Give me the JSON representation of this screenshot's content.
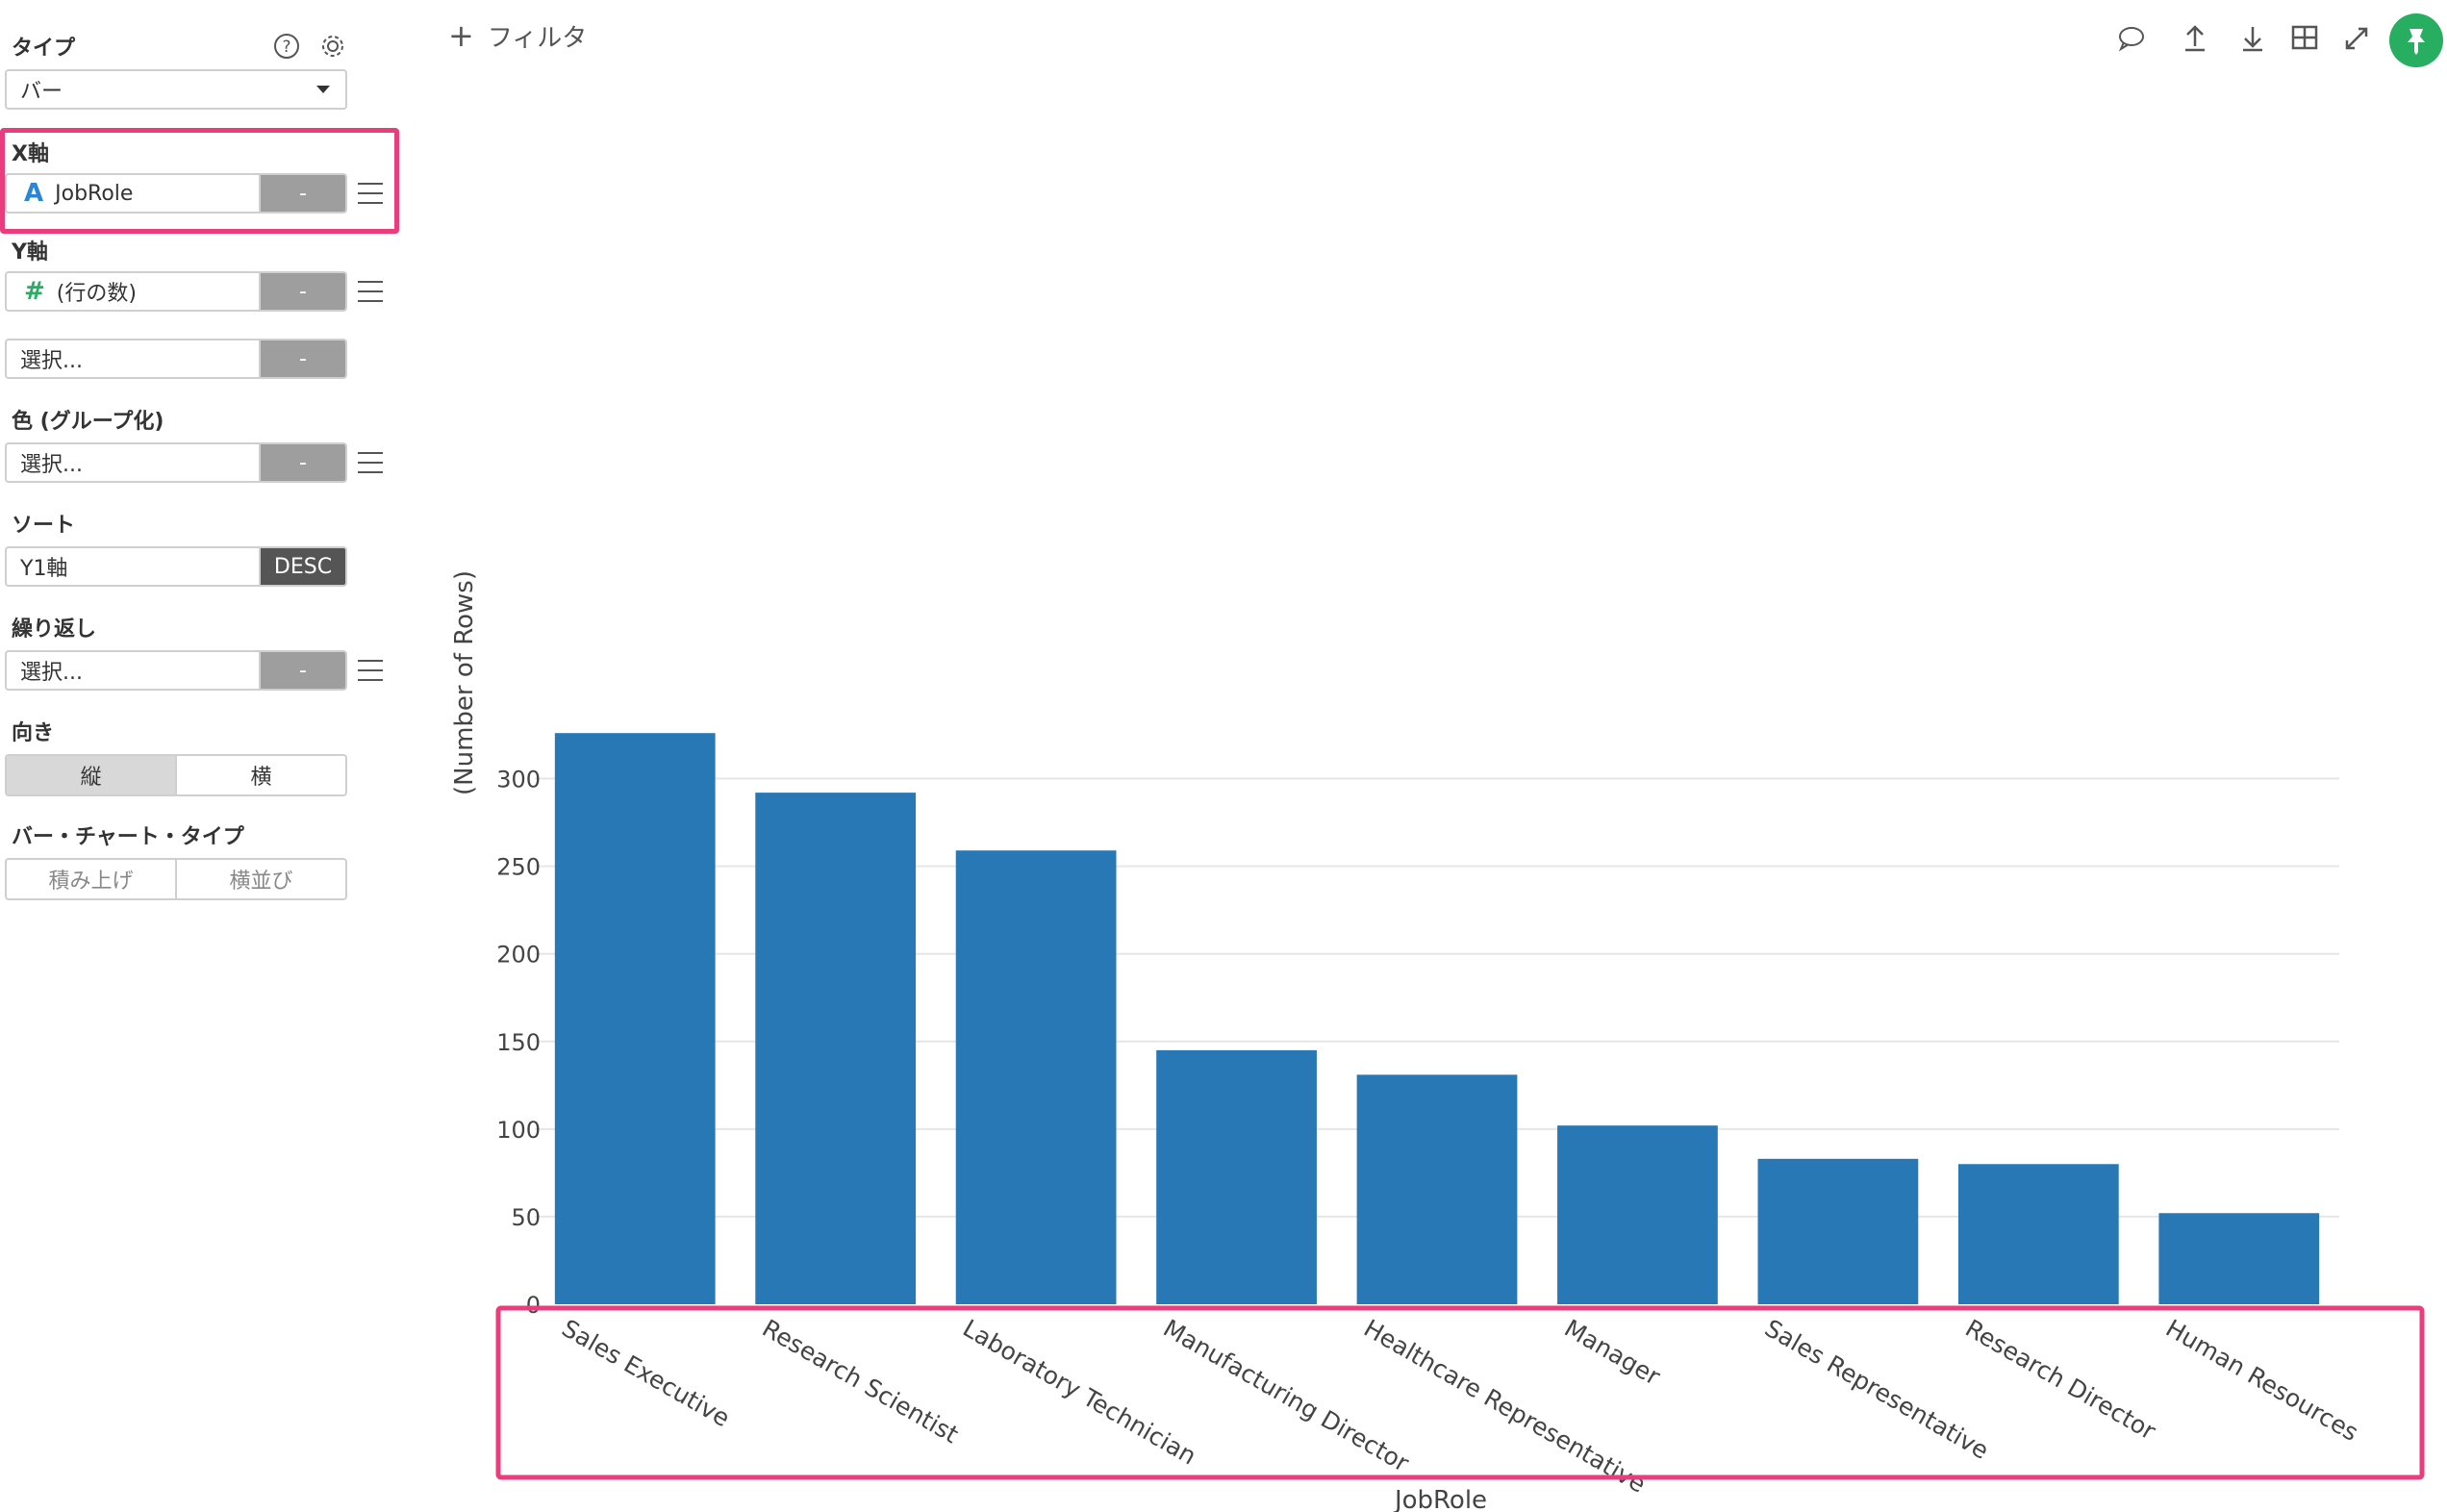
{
  "panel": {
    "type_label": "タイプ",
    "type_value": "バー",
    "x_axis_label": "X軸",
    "x_axis_field": "JobRole",
    "x_axis_btn": "-",
    "y_axis_label": "Y軸",
    "y_axis_field": "(行の数)",
    "y_axis_btn": "-",
    "y2_placeholder": "選択...",
    "y2_btn": "-",
    "color_label": "色 (グループ化)",
    "color_placeholder": "選択...",
    "color_btn": "-",
    "sort_label": "ソート",
    "sort_value": "Y1軸",
    "sort_order": "DESC",
    "repeat_label": "繰り返し",
    "repeat_placeholder": "選択...",
    "repeat_btn": "-",
    "orientation_label": "向き",
    "orientation_options": [
      "縦",
      "横"
    ],
    "bar_type_label": "バー・チャート・タイプ",
    "bar_type_options": [
      "積み上げ",
      "横並び"
    ]
  },
  "toolbar": {
    "filter_label": "フィルタ",
    "icons": [
      "comment-icon",
      "upload-icon",
      "download-icon",
      "table-icon",
      "expand-icon",
      "pin-icon"
    ]
  },
  "colors": {
    "bar": "#2878b5",
    "highlight": "#ea3d7d",
    "pin": "#27ae60"
  },
  "chart_data": {
    "type": "bar",
    "categories": [
      "Sales Executive",
      "Research Scientist",
      "Laboratory Technician",
      "Manufacturing Director",
      "Healthcare Representative",
      "Manager",
      "Sales Representative",
      "Research Director",
      "Human Resources"
    ],
    "values": [
      326,
      292,
      259,
      145,
      131,
      102,
      83,
      80,
      52
    ],
    "xlabel": "JobRole",
    "ylabel": "(Number of Rows)",
    "yticks": [
      0,
      50,
      100,
      150,
      200,
      250,
      300
    ],
    "ylim": [
      0,
      342
    ],
    "grid": true
  }
}
